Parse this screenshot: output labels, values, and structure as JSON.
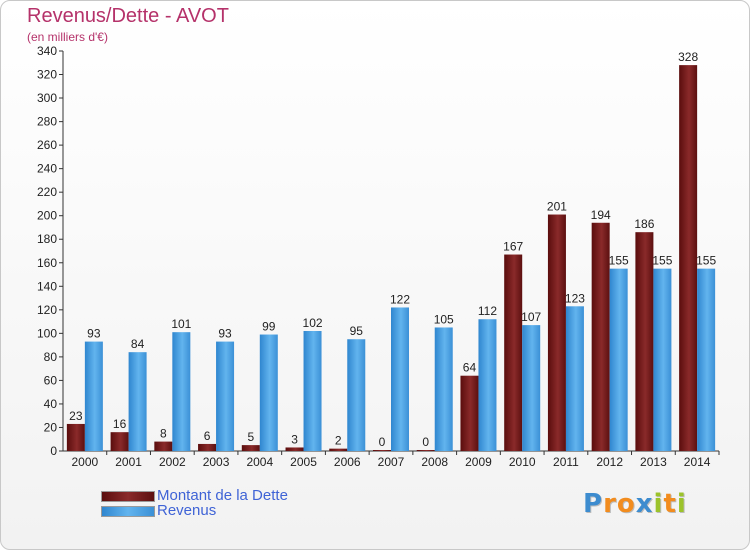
{
  "title": "Revenus/Dette - AVOT",
  "subtitle": "(en milliers d'€)",
  "colors": {
    "dette": "#7a1c1c",
    "revenus": "#4da6e6",
    "title": "#b5326a",
    "legend_text": "#3f63d6"
  },
  "legend": {
    "dette": "Montant de la Dette",
    "revenus": "Revenus"
  },
  "logo": {
    "text": "Proxiti",
    "letters": [
      "P",
      "r",
      "o",
      "x",
      "i",
      "t",
      "i"
    ],
    "colors": [
      "#3d8ccf",
      "#f28c1e",
      "#f28c1e",
      "#3d8ccf",
      "#9cc32b",
      "#f28c1e",
      "#9cc32b"
    ]
  },
  "chart_data": {
    "type": "bar",
    "title": "Revenus/Dette - AVOT",
    "subtitle": "(en milliers d'€)",
    "xlabel": "",
    "ylabel": "",
    "ylim": [
      0,
      340
    ],
    "yticks": [
      0,
      20,
      40,
      60,
      80,
      100,
      120,
      140,
      160,
      180,
      200,
      220,
      240,
      260,
      280,
      300,
      320,
      340
    ],
    "grid": false,
    "legend_position": "bottom-left",
    "categories": [
      "2000",
      "2001",
      "2002",
      "2003",
      "2004",
      "2005",
      "2006",
      "2007",
      "2008",
      "2009",
      "2010",
      "2011",
      "2012",
      "2013",
      "2014"
    ],
    "series": [
      {
        "name": "Montant de la Dette",
        "values": [
          23,
          16,
          8,
          6,
          5,
          3,
          2,
          0,
          0,
          64,
          167,
          201,
          194,
          186,
          328
        ]
      },
      {
        "name": "Revenus",
        "values": [
          93,
          84,
          101,
          93,
          99,
          102,
          95,
          122,
          105,
          112,
          107,
          123,
          155,
          155,
          155
        ]
      }
    ]
  }
}
